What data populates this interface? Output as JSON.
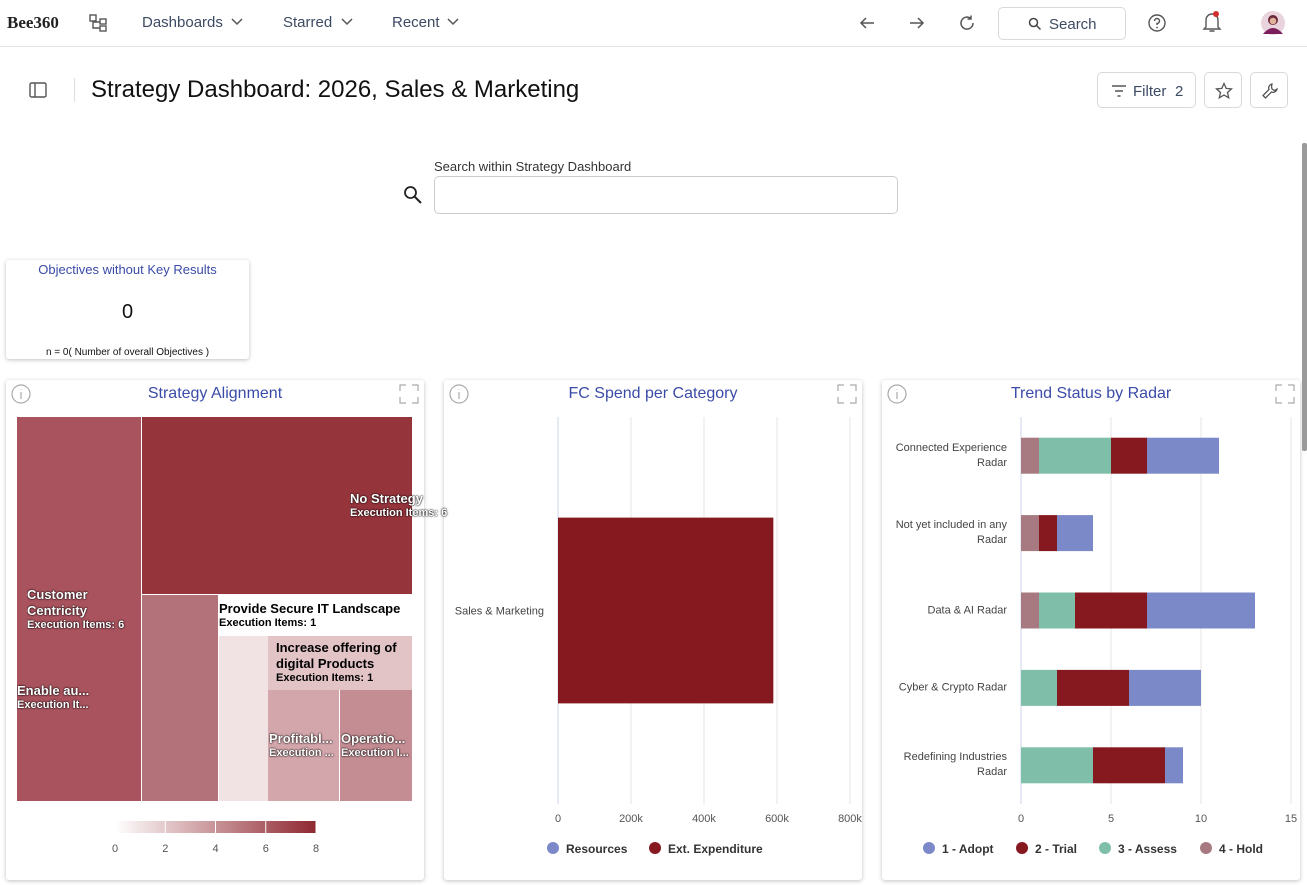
{
  "nav": {
    "logo": "Bee360",
    "menu": [
      "Dashboards",
      "Starred",
      "Recent"
    ],
    "search": "Search"
  },
  "header": {
    "title": "Strategy Dashboard: 2026, Sales & Marketing",
    "filter_label": "Filter",
    "filter_count": 2
  },
  "search": {
    "label": "Search within Strategy Dashboard"
  },
  "kpi": {
    "title": "Objectives without Key Results",
    "value": 0,
    "note": "n = 0( Number of overall Objectives )"
  },
  "chart_data": [
    {
      "type": "treemap",
      "title": "Strategy Alignment",
      "categories": [
        "Customer Centricity",
        "No Strategy",
        "Enable au...",
        "Provide Secure IT Landscape",
        "Increase offering of digital Products",
        "Profitabl...",
        "Operatio..."
      ],
      "values": [
        6,
        6,
        2,
        1,
        1,
        1,
        1
      ],
      "value_labels": [
        "Execution Items: 6",
        "Execution Items: 6",
        "Execution It...",
        "Execution Items: 1",
        "Execution Items: 1",
        "Execution ...",
        "Execution I..."
      ],
      "colors": [
        "#a9535e",
        "#96343c",
        "#b3727a",
        "#f1e3e4",
        "#e2c3c6",
        "#d3a6ab",
        "#c48d93"
      ],
      "colorlim": [
        0,
        8
      ],
      "colorticks": [
        0,
        2,
        4,
        6,
        8
      ],
      "colorscale": [
        "#ffffff",
        "#8f2730"
      ]
    },
    {
      "type": "hbar",
      "title": "FC Spend per Category",
      "categories": [
        "Sales & Marketing"
      ],
      "series": [
        {
          "name": "Resources",
          "color": "#7b89c9",
          "values": [
            0
          ]
        },
        {
          "name": "Ext. Expenditure",
          "color": "#85191f",
          "values": [
            590000
          ]
        }
      ],
      "xlim": [
        0,
        800000
      ],
      "xticks": [
        0,
        {
          "value": 200000,
          "label": "200k"
        },
        {
          "value": 400000,
          "label": "400k"
        },
        {
          "value": 600000,
          "label": "600k"
        },
        {
          "value": 800000,
          "label": "800k"
        }
      ],
      "grid": true
    },
    {
      "type": "stacked_hbar",
      "title": "Trend Status by Radar",
      "categories": [
        "Connected Experience Radar",
        "Not yet included in any Radar",
        "Data & AI Radar",
        "Cyber & Crypto Radar",
        "Redefining Industries Radar"
      ],
      "series": [
        {
          "name": "1 - Adopt",
          "color": "#7b89c9",
          "values": [
            4,
            2,
            6,
            4,
            1
          ]
        },
        {
          "name": "2 - Trial",
          "color": "#85191f",
          "values": [
            2,
            1,
            4,
            4,
            4
          ]
        },
        {
          "name": "3 - Assess",
          "color": "#7fbfa9",
          "values": [
            4,
            0,
            2,
            2,
            4
          ]
        },
        {
          "name": "4 - Hold",
          "color": "#a67a80",
          "values": [
            1,
            1,
            1,
            0,
            0
          ]
        }
      ],
      "xlim": [
        0,
        15
      ],
      "xticks": [
        0,
        5,
        10,
        15
      ],
      "grid": true
    }
  ]
}
